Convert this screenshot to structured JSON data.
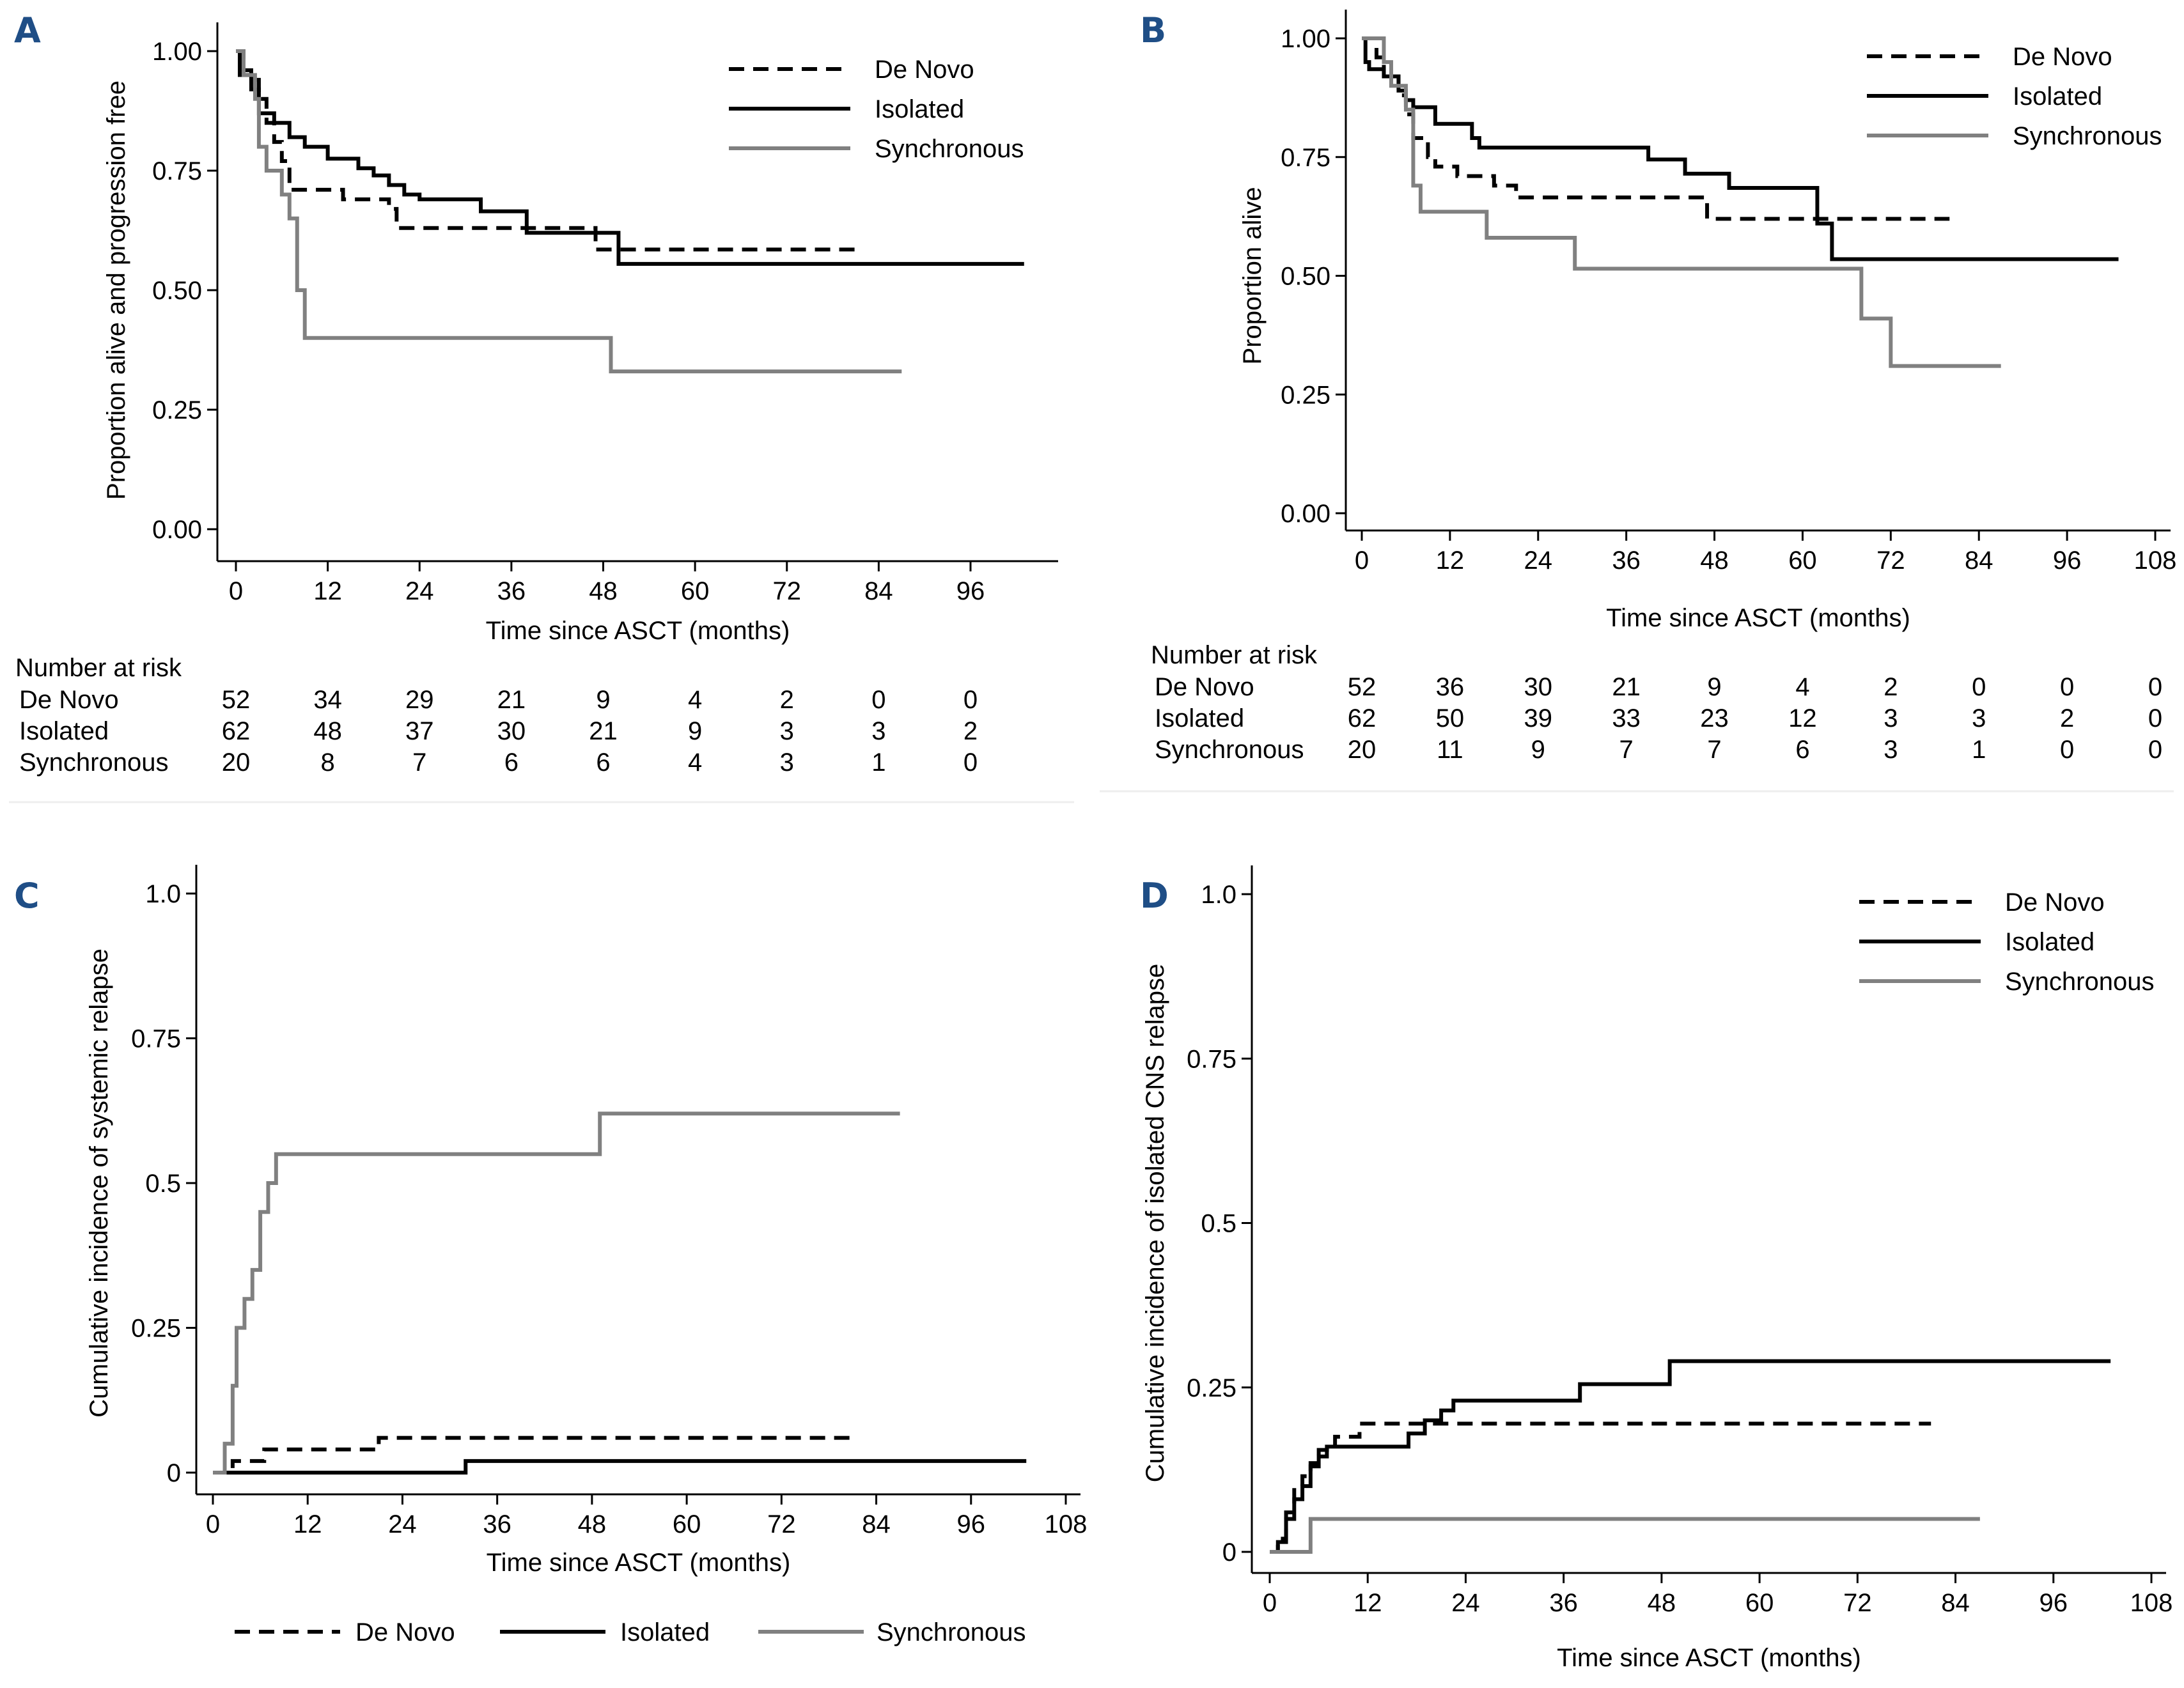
{
  "colors": {
    "panel_label": "#1f4e86",
    "de_novo": "#000000",
    "isolated": "#000000",
    "synchronous": "#808080"
  },
  "legend": [
    "De Novo",
    "Isolated",
    "Synchronous"
  ],
  "chart_data": [
    {
      "panel": "A",
      "type": "line",
      "step": true,
      "title": "",
      "xlabel": "Time since ASCT (months)",
      "ylabel": "Proportion alive and progression free",
      "xlim": [
        0,
        102
      ],
      "ylim": [
        0,
        1
      ],
      "xticks": [
        0,
        12,
        24,
        36,
        48,
        60,
        72,
        84,
        96
      ],
      "yticks": [
        0,
        0.25,
        0.5,
        0.75,
        1.0
      ],
      "ytick_labels": [
        "0.00",
        "0.25",
        "0.50",
        "0.75",
        "1.00"
      ],
      "legend_position": "top-right",
      "series": [
        {
          "name": "De Novo",
          "style": "dashed",
          "x": [
            0,
            1,
            2,
            3,
            4,
            5,
            6,
            7,
            12,
            14,
            20,
            21,
            47,
            81
          ],
          "y": [
            1.0,
            0.96,
            0.94,
            0.9,
            0.85,
            0.81,
            0.77,
            0.71,
            0.71,
            0.69,
            0.67,
            0.63,
            0.585,
            0.585
          ]
        },
        {
          "name": "Isolated",
          "style": "solid",
          "x": [
            0,
            0.5,
            2,
            3,
            5,
            7,
            9,
            12,
            16,
            18,
            20,
            22,
            24,
            32,
            38,
            50,
            103
          ],
          "y": [
            1.0,
            0.95,
            0.92,
            0.87,
            0.85,
            0.82,
            0.8,
            0.775,
            0.755,
            0.74,
            0.72,
            0.7,
            0.69,
            0.665,
            0.62,
            0.555,
            0.555
          ]
        },
        {
          "name": "Synchronous",
          "style": "solid",
          "x": [
            0,
            1,
            2.5,
            3,
            4,
            6,
            7,
            8,
            9,
            49,
            87
          ],
          "y": [
            1.0,
            0.95,
            0.9,
            0.8,
            0.75,
            0.7,
            0.65,
            0.5,
            0.4,
            0.33,
            0.33
          ]
        }
      ],
      "risk_table": {
        "title": "Number at risk",
        "times": [
          0,
          12,
          24,
          36,
          48,
          60,
          72,
          84,
          96
        ],
        "rows": [
          {
            "label": "De Novo",
            "values": [
              52,
              34,
              29,
              21,
              9,
              4,
              2,
              0,
              0
            ]
          },
          {
            "label": "Isolated",
            "values": [
              62,
              48,
              37,
              30,
              21,
              9,
              3,
              3,
              2
            ]
          },
          {
            "label": "Synchronous",
            "values": [
              20,
              8,
              7,
              6,
              6,
              4,
              3,
              1,
              0
            ]
          }
        ]
      }
    },
    {
      "panel": "B",
      "type": "line",
      "step": true,
      "title": "",
      "xlabel": "Time since ASCT (months)",
      "ylabel": "Proportion alive",
      "xlim": [
        0,
        108
      ],
      "ylim": [
        0,
        1
      ],
      "xticks": [
        0,
        12,
        24,
        36,
        48,
        60,
        72,
        84,
        96,
        108
      ],
      "yticks": [
        0,
        0.25,
        0.5,
        0.75,
        1.0
      ],
      "ytick_labels": [
        "0.00",
        "0.25",
        "0.50",
        "0.75",
        "1.00"
      ],
      "legend_position": "top-right",
      "series": [
        {
          "name": "De Novo",
          "style": "dashed",
          "x": [
            0,
            2,
            3,
            5,
            6,
            7,
            9,
            10,
            13,
            18,
            21,
            47,
            80
          ],
          "y": [
            1.0,
            0.96,
            0.92,
            0.88,
            0.84,
            0.79,
            0.75,
            0.73,
            0.71,
            0.69,
            0.665,
            0.62,
            0.62
          ]
        },
        {
          "name": "Isolated",
          "style": "solid",
          "x": [
            0,
            0.5,
            1,
            3,
            5,
            6,
            7,
            10,
            15,
            16,
            39,
            44,
            50,
            62,
            64,
            103
          ],
          "y": [
            1.0,
            0.95,
            0.935,
            0.92,
            0.89,
            0.87,
            0.855,
            0.82,
            0.79,
            0.77,
            0.745,
            0.715,
            0.685,
            0.61,
            0.535,
            0.535
          ]
        },
        {
          "name": "Synchronous",
          "style": "solid",
          "x": [
            0,
            3,
            4,
            6,
            7,
            8,
            17,
            29,
            68,
            72,
            87
          ],
          "y": [
            1.0,
            0.95,
            0.9,
            0.85,
            0.69,
            0.635,
            0.58,
            0.515,
            0.41,
            0.31,
            0.31
          ]
        }
      ],
      "risk_table": {
        "title": "Number at risk",
        "times": [
          0,
          12,
          24,
          36,
          48,
          60,
          72,
          84,
          96,
          108
        ],
        "rows": [
          {
            "label": "De Novo",
            "values": [
              52,
              36,
              30,
              21,
              9,
              4,
              2,
              0,
              0,
              0
            ]
          },
          {
            "label": "Isolated",
            "values": [
              62,
              50,
              39,
              33,
              23,
              12,
              3,
              3,
              2,
              0
            ]
          },
          {
            "label": "Synchronous",
            "values": [
              20,
              11,
              9,
              7,
              7,
              6,
              3,
              1,
              0,
              0
            ]
          }
        ]
      }
    },
    {
      "panel": "C",
      "type": "line",
      "step": true,
      "title": "",
      "xlabel": "Time since ASCT (months)",
      "ylabel": "Cumulative incidence of systemic relapse",
      "xlim": [
        0,
        108
      ],
      "ylim": [
        0,
        1
      ],
      "xticks": [
        0,
        12,
        24,
        36,
        48,
        60,
        72,
        84,
        96,
        108
      ],
      "yticks": [
        0,
        0.25,
        0.5,
        0.75,
        1.0
      ],
      "ytick_labels": [
        "0",
        "0.25",
        "0.5",
        "0.75",
        "1.0"
      ],
      "legend_position": "bottom",
      "series": [
        {
          "name": "De Novo",
          "style": "dashed",
          "x": [
            0,
            2.5,
            6.5,
            21,
            81
          ],
          "y": [
            0,
            0.02,
            0.04,
            0.06,
            0.06
          ]
        },
        {
          "name": "Isolated",
          "style": "solid",
          "x": [
            0,
            32,
            103
          ],
          "y": [
            0,
            0.02,
            0.02
          ]
        },
        {
          "name": "Synchronous",
          "style": "solid",
          "x": [
            0,
            1.5,
            2.5,
            3,
            4,
            5,
            6,
            7,
            8,
            9,
            49,
            87
          ],
          "y": [
            0,
            0.05,
            0.15,
            0.25,
            0.3,
            0.35,
            0.45,
            0.5,
            0.55,
            0.55,
            0.62,
            0.62
          ]
        }
      ]
    },
    {
      "panel": "D",
      "type": "line",
      "step": true,
      "title": "",
      "xlabel": "Time since ASCT (months)",
      "ylabel": "Cumulative incidence of isolated CNS relapse",
      "xlim": [
        0,
        108
      ],
      "ylim": [
        0,
        1
      ],
      "xticks": [
        0,
        12,
        24,
        36,
        48,
        60,
        72,
        84,
        96,
        108
      ],
      "yticks": [
        0,
        0.25,
        0.5,
        0.75,
        1.0
      ],
      "ytick_labels": [
        "0",
        "0.25",
        "0.5",
        "0.75",
        "1.0"
      ],
      "legend_position": "top-right",
      "series": [
        {
          "name": "De Novo",
          "style": "dashed",
          "x": [
            0,
            1,
            2,
            3,
            4,
            5,
            6,
            8,
            11,
            81
          ],
          "y": [
            0,
            0.02,
            0.06,
            0.1,
            0.115,
            0.135,
            0.155,
            0.175,
            0.195,
            0.195
          ]
        },
        {
          "name": "Isolated",
          "style": "solid",
          "x": [
            0,
            1,
            2,
            3,
            4,
            5,
            6,
            7,
            8,
            17,
            19,
            21,
            22.5,
            38,
            49,
            103
          ],
          "y": [
            0,
            0.015,
            0.05,
            0.08,
            0.1,
            0.13,
            0.145,
            0.16,
            0.16,
            0.18,
            0.2,
            0.215,
            0.23,
            0.255,
            0.29,
            0.29
          ]
        },
        {
          "name": "Synchronous",
          "style": "solid",
          "x": [
            0,
            5,
            87
          ],
          "y": [
            0,
            0.05,
            0.05
          ]
        }
      ]
    }
  ]
}
